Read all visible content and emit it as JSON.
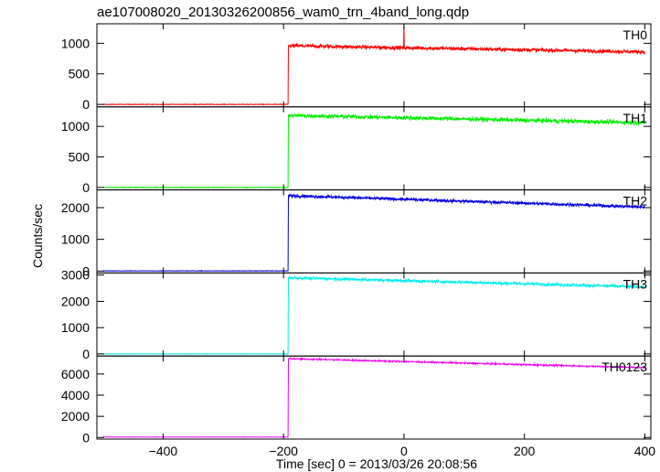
{
  "chart_data": {
    "type": "line",
    "title": "ae107008020_20130326200856_wam0_trn_4band_long.qdp",
    "xlabel": "Time [sec] 0 = 2013/03/26 20:08:56",
    "ylabel": "Counts/sec",
    "xlim": [
      -510,
      410
    ],
    "x_ticks": [
      -400,
      -200,
      0,
      200,
      400
    ],
    "onset_time": -192,
    "panels": [
      {
        "name": "TH0",
        "color": "#ff0000",
        "ylim": [
          -40,
          1320
        ],
        "y_ticks": [
          0,
          500,
          1000
        ],
        "pre_level": 0,
        "post_start": 960,
        "post_end": 860,
        "noise": 40,
        "spike": {
          "x": 0,
          "y": 1320
        }
      },
      {
        "name": "TH1",
        "color": "#00ee00",
        "ylim": [
          -40,
          1320
        ],
        "y_ticks": [
          0,
          500,
          1000
        ],
        "pre_level": 0,
        "post_start": 1180,
        "post_end": 1060,
        "noise": 45
      },
      {
        "name": "TH2",
        "color": "#0000dd",
        "ylim": [
          -60,
          2560
        ],
        "y_ticks": [
          0,
          1000,
          2000
        ],
        "pre_level": 5,
        "post_start": 2380,
        "post_end": 2020,
        "noise": 60
      },
      {
        "name": "TH3",
        "color": "#00eeee",
        "ylim": [
          -80,
          3080
        ],
        "y_ticks": [
          0,
          1000,
          2000,
          3000
        ],
        "pre_level": 0,
        "post_start": 2900,
        "post_end": 2550,
        "noise": 70
      },
      {
        "name": "TH0123",
        "color": "#ee00ee",
        "ylim": [
          -150,
          7700
        ],
        "y_ticks": [
          0,
          2000,
          4000,
          6000
        ],
        "pre_level": 40,
        "post_start": 7450,
        "post_end": 6600,
        "noise": 90
      }
    ]
  }
}
